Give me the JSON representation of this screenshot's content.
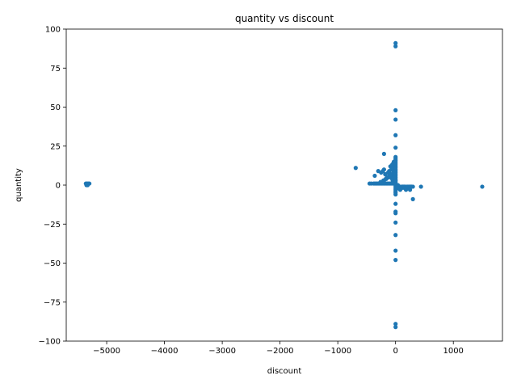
{
  "chart_data": {
    "type": "scatter",
    "title": "quantity vs discount",
    "xlabel": "discount",
    "ylabel": "quantity",
    "xlim": [
      -5700,
      1850
    ],
    "ylim": [
      -100,
      100
    ],
    "xticks": [
      -5000,
      -4000,
      -3000,
      -2000,
      -1000,
      0,
      1000
    ],
    "xtick_labels": [
      "−5000",
      "−4000",
      "−3000",
      "−2000",
      "−1000",
      "0",
      "1000"
    ],
    "yticks": [
      -100,
      -75,
      -50,
      -25,
      0,
      25,
      50,
      75,
      100
    ],
    "ytick_labels": [
      "−100",
      "−75",
      "−50",
      "−25",
      "0",
      "25",
      "50",
      "75",
      "100"
    ],
    "grid": false,
    "marker_color": "#1f77b4",
    "series": [
      {
        "x": [
          -5360,
          -5340,
          -5320,
          -5300,
          -5350,
          -5330,
          -690,
          -450,
          -420,
          -380,
          -360,
          -340,
          -320,
          -300,
          -280,
          -260,
          -240,
          -220,
          -200,
          -180,
          -160,
          -140,
          -120,
          -100,
          -80,
          -60,
          -40,
          -20,
          -360,
          -300,
          -250,
          -220,
          -200,
          -180,
          -150,
          -130,
          -110,
          -90,
          -70,
          -50,
          -40,
          -30,
          -20,
          -10,
          -260,
          -210,
          -170,
          -140,
          -110,
          -80,
          -60,
          -40,
          -20,
          -200,
          -160,
          -120,
          -90,
          -60,
          -30,
          -200,
          -120,
          -80,
          -60,
          -50,
          -30,
          -10,
          -90,
          -70,
          -50,
          -30,
          -20,
          -10,
          -60,
          -40,
          -20,
          -10,
          0,
          0,
          0,
          0,
          0,
          0,
          0,
          0,
          0,
          0,
          0,
          0,
          0,
          0,
          0,
          0,
          0,
          0,
          0,
          0,
          0,
          0,
          0,
          0,
          0,
          0,
          0,
          0,
          0,
          0,
          0,
          0,
          0,
          0,
          0,
          0,
          0,
          0,
          0,
          0,
          0,
          10,
          20,
          40,
          60,
          80,
          100,
          120,
          140,
          160,
          180,
          200,
          220,
          240,
          260,
          280,
          300,
          20,
          40,
          60,
          80,
          100,
          120,
          140,
          160,
          180,
          200,
          220,
          240,
          30,
          60,
          90,
          120,
          150,
          180,
          210,
          240,
          270,
          50,
          100,
          150,
          200,
          250,
          300,
          250,
          440,
          1500
        ],
        "y": [
          1,
          1,
          1,
          1,
          0,
          0,
          11,
          1,
          1,
          1,
          1,
          1,
          1,
          1,
          1,
          1,
          1,
          1,
          1,
          1,
          1,
          1,
          1,
          1,
          1,
          1,
          1,
          1,
          6,
          9,
          8,
          9,
          20,
          7,
          5,
          8,
          9,
          7,
          10,
          12,
          14,
          15,
          15,
          13,
          2,
          3,
          4,
          5,
          6,
          5,
          7,
          8,
          9,
          3,
          4,
          5,
          6,
          7,
          8,
          10,
          8,
          6,
          4,
          3,
          2,
          1,
          12,
          11,
          10,
          9,
          6,
          4,
          13,
          11,
          8,
          5,
          91,
          89,
          48,
          42,
          32,
          24,
          18,
          16,
          14,
          12,
          10,
          8,
          6,
          4,
          2,
          0,
          -2,
          -4,
          -6,
          -12,
          -17,
          -18,
          -24,
          -32,
          -42,
          -48,
          -89,
          -91,
          15,
          11,
          9,
          7,
          5,
          3,
          1,
          -1,
          -3,
          -5,
          17,
          13,
          3,
          0,
          0,
          0,
          -1,
          -1,
          -1,
          -1,
          -1,
          -1,
          -1,
          -2,
          -2,
          -2,
          -1,
          -1,
          -1,
          -1,
          -2,
          -2,
          -3,
          -2,
          -1,
          -1,
          -2,
          -3,
          -2,
          -1,
          -1,
          -1,
          -1,
          -2,
          -1,
          -1,
          -2,
          -1,
          -1,
          -1,
          -2,
          -2,
          -1,
          -1,
          -1,
          -9,
          -3,
          -1,
          -1
        ]
      }
    ]
  }
}
